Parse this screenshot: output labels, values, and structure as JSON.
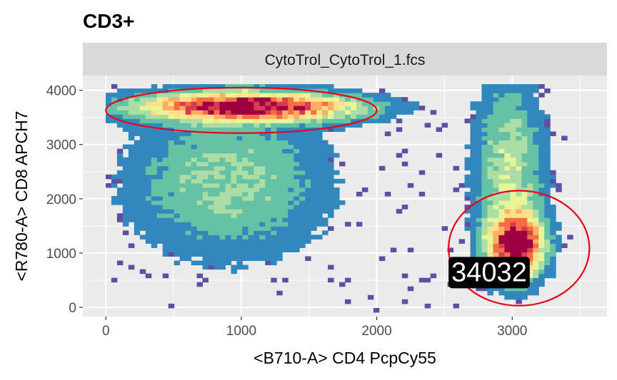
{
  "chart_data": {
    "type": "heatmap",
    "title": "CD3+",
    "facet_label": "CytoTrol_CytoTrol_1.fcs",
    "xlabel": "<B710-A> CD4 PcpCy55",
    "ylabel": "<R780-A> CD8 APCH7",
    "xlim": [
      -170,
      3700
    ],
    "ylim": [
      -170,
      4270
    ],
    "x_ticks": [
      0,
      1000,
      2000,
      3000
    ],
    "y_ticks": [
      0,
      1000,
      2000,
      3000,
      4000
    ],
    "grid": true,
    "legend": "none",
    "colormap": [
      "#5e4fa2",
      "#3288bd",
      "#66c2a5",
      "#abdda4",
      "#e6f598",
      "#fee08b",
      "#fdae61",
      "#f46d43",
      "#d53e4f",
      "#9e0142"
    ],
    "populations": [
      {
        "name": "cd8-cluster",
        "center": [
          1050,
          3700
        ],
        "spread": [
          520,
          170
        ],
        "density": 1.0
      },
      {
        "name": "cd8-tail",
        "center": [
          900,
          2300
        ],
        "spread": [
          480,
          900
        ],
        "density": 0.25
      },
      {
        "name": "cd4-cluster",
        "center": [
          3030,
          1150
        ],
        "spread": [
          130,
          380
        ],
        "density": 1.0
      },
      {
        "name": "cd4-column",
        "center": [
          2980,
          2500
        ],
        "spread": [
          170,
          1100
        ],
        "density": 0.3
      }
    ],
    "gates": [
      {
        "shape": "ellipse",
        "center": [
          1000,
          3630
        ],
        "radius_x": 1000,
        "radius_y": 420,
        "color": "#e8001a"
      },
      {
        "shape": "ellipse",
        "center": [
          3050,
          1090
        ],
        "radius_x": 520,
        "radius_y": 1060,
        "color": "#e8001a"
      }
    ],
    "annotations": [
      {
        "text": "34032",
        "x": 2830,
        "y": 640
      }
    ]
  }
}
